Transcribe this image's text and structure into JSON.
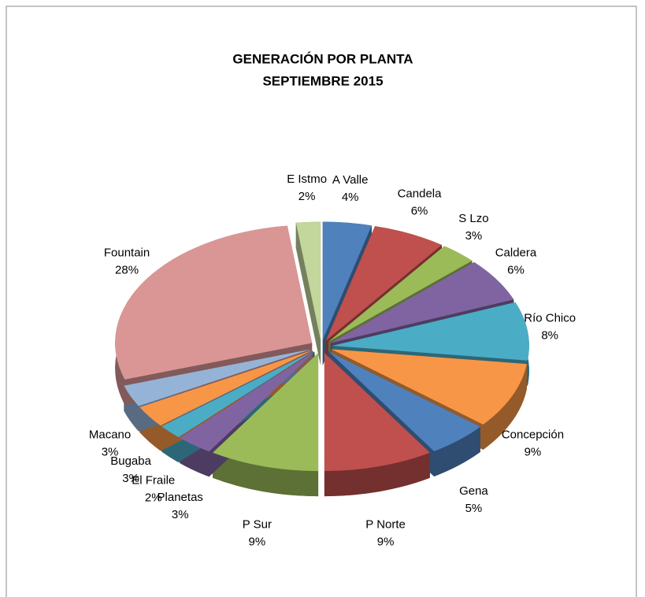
{
  "chart_data": {
    "type": "pie",
    "title": "GENERACIÓN POR PLANTA",
    "subtitle": "SEPTIEMBRE  2015",
    "categories": [
      "A Valle",
      "Candela",
      "S Lzo",
      "Caldera",
      "Río Chico",
      "Concepción",
      "Gena",
      "P Norte",
      "P Sur",
      "Planetas",
      "El Fraile",
      "Bugaba",
      "Macano",
      "Fountain",
      "E Istmo"
    ],
    "values": [
      4,
      6,
      3,
      6,
      8,
      9,
      5,
      9,
      9,
      3,
      2,
      3,
      3,
      28,
      2
    ],
    "value_labels": [
      "4%",
      "6%",
      "3%",
      "6%",
      "8%",
      "9%",
      "5%",
      "9%",
      "9%",
      "3%",
      "2%",
      "3%",
      "3%",
      "28%",
      "2%"
    ],
    "colors": [
      "#4f81bd",
      "#c0504d",
      "#9bbb59",
      "#8064a2",
      "#4bacc6",
      "#f79646",
      "#4f81bd",
      "#c0504d",
      "#9bbb59",
      "#8064a2",
      "#4bacc6",
      "#f79646",
      "#95b3d7",
      "#d99694",
      "#c3d69b"
    ]
  }
}
